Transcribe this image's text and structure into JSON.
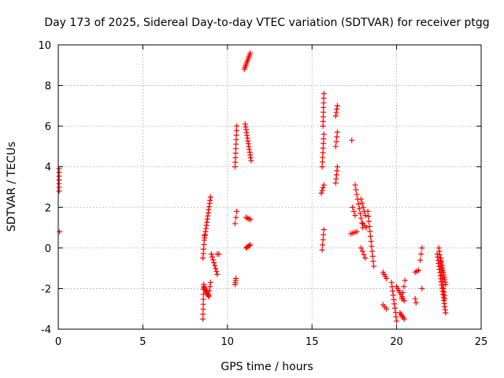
{
  "chart_data": {
    "type": "scatter",
    "title": "Day 173 of 2025, Sidereal Day-to-day VTEC variation (SDTVAR) for receiver ptgg",
    "xlabel": "GPS time / hours",
    "ylabel": "SDTVAR / TECUs",
    "xlim": [
      0,
      25
    ],
    "ylim": [
      -4,
      10
    ],
    "xticks": [
      0,
      5,
      10,
      15,
      20,
      25
    ],
    "yticks": [
      -4,
      -2,
      0,
      2,
      4,
      6,
      8,
      10
    ],
    "grid": true,
    "marker": "+",
    "color": "#ff0000",
    "series": [
      {
        "name": "SDTVAR",
        "segments": [
          [
            0.05,
            3.9,
            0.05,
            2.8,
            7
          ],
          [
            0.08,
            0.8,
            0.08,
            0.8,
            1
          ],
          [
            8.55,
            -3.5,
            8.6,
            -1.8,
            8
          ],
          [
            8.6,
            -1.9,
            8.9,
            -2.4,
            10
          ],
          [
            8.55,
            -0.5,
            8.65,
            0.6,
            6
          ],
          [
            8.65,
            0.5,
            9.0,
            2.5,
            14
          ],
          [
            8.9,
            -2.3,
            9.0,
            -1.7,
            4
          ],
          [
            9.05,
            -0.3,
            9.4,
            -1.3,
            8
          ],
          [
            9.4,
            -0.3,
            9.5,
            -0.3,
            2
          ],
          [
            10.45,
            -1.8,
            10.5,
            -1.5,
            4
          ],
          [
            10.45,
            4.0,
            10.55,
            6.0,
            10
          ],
          [
            10.45,
            1.2,
            10.55,
            1.8,
            3
          ],
          [
            11.0,
            8.8,
            11.35,
            9.6,
            10
          ],
          [
            11.05,
            6.1,
            11.4,
            4.3,
            14
          ],
          [
            11.1,
            1.5,
            11.35,
            1.4,
            4
          ],
          [
            11.1,
            0.0,
            11.35,
            0.15,
            5
          ],
          [
            15.6,
            -0.1,
            15.7,
            0.9,
            5
          ],
          [
            15.55,
            2.7,
            15.7,
            3.1,
            4
          ],
          [
            15.6,
            4.0,
            15.7,
            5.6,
            8
          ],
          [
            15.65,
            6.0,
            15.7,
            7.6,
            8
          ],
          [
            16.4,
            3.2,
            16.5,
            4.0,
            5
          ],
          [
            16.4,
            5.0,
            16.5,
            5.7,
            4
          ],
          [
            16.4,
            6.5,
            16.5,
            7.0,
            4
          ],
          [
            17.35,
            5.3,
            17.35,
            5.3,
            1
          ],
          [
            17.3,
            0.7,
            17.65,
            0.8,
            4
          ],
          [
            17.4,
            2.0,
            17.55,
            1.6,
            3
          ],
          [
            17.55,
            3.1,
            18.0,
            1.0,
            10
          ],
          [
            17.9,
            2.4,
            18.15,
            1.6,
            5
          ],
          [
            18.0,
            1.2,
            18.2,
            1.0,
            3
          ],
          [
            17.9,
            0.0,
            18.15,
            -0.5,
            4
          ],
          [
            18.3,
            1.8,
            18.65,
            -0.9,
            12
          ],
          [
            19.2,
            -1.2,
            19.4,
            -1.5,
            4
          ],
          [
            19.2,
            -2.8,
            19.4,
            -3.0,
            3
          ],
          [
            19.7,
            -1.7,
            20.0,
            -3.6,
            10
          ],
          [
            20.0,
            -1.9,
            20.45,
            -2.6,
            8
          ],
          [
            20.2,
            -3.2,
            20.45,
            -3.5,
            5
          ],
          [
            20.3,
            -2.5,
            20.5,
            -1.6,
            4
          ],
          [
            21.1,
            -2.5,
            21.15,
            -2.7,
            2
          ],
          [
            21.1,
            -1.2,
            21.3,
            -1.1,
            3
          ],
          [
            21.4,
            -0.6,
            21.5,
            0.0,
            3
          ],
          [
            21.5,
            -2.0,
            21.5,
            -2.0,
            1
          ],
          [
            22.4,
            -0.3,
            22.9,
            -3.2,
            20
          ],
          [
            22.5,
            0.0,
            22.85,
            -2.5,
            16
          ],
          [
            22.6,
            -0.5,
            22.9,
            -1.8,
            12
          ]
        ]
      }
    ]
  }
}
